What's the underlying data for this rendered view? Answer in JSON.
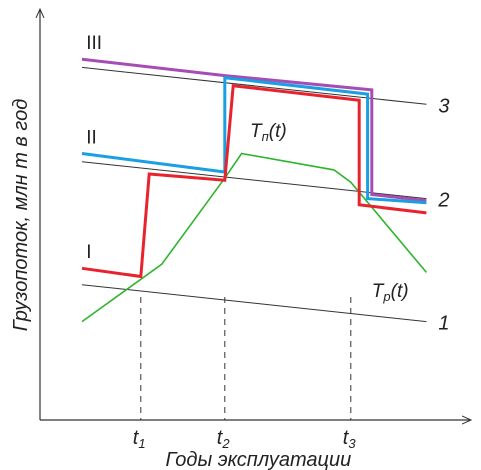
{
  "chart_data": {
    "type": "line",
    "xlabel": "Годы эксплуатации",
    "ylabel": "Грузопоток, млн т в год",
    "x_ticks": [
      {
        "base": "t",
        "sub": "1",
        "x": 2.4
      },
      {
        "base": "t",
        "sub": "2",
        "x": 4.4
      },
      {
        "base": "t",
        "sub": "3",
        "x": 7.4
      }
    ],
    "xlim": [
      0,
      10
    ],
    "ylim": [
      0,
      10
    ],
    "levels": [
      {
        "name": "1",
        "values": [
          [
            1,
            3.3
          ],
          [
            9.2,
            2.4
          ]
        ]
      },
      {
        "name": "2",
        "values": [
          [
            1,
            6.3
          ],
          [
            9.2,
            5.4
          ]
        ]
      },
      {
        "name": "3",
        "values": [
          [
            1,
            8.6
          ],
          [
            9.2,
            7.7
          ]
        ]
      }
    ],
    "series": [
      {
        "name": "T_п(t)",
        "color": "#2db52d",
        "values": [
          [
            1,
            2.4
          ],
          [
            2.9,
            3.8
          ],
          [
            4.4,
            5.9
          ],
          [
            4.8,
            6.5
          ],
          [
            7,
            6.1
          ],
          [
            7.4,
            5.8
          ],
          [
            9.2,
            3.6
          ]
        ]
      },
      {
        "name": "",
        "color": "#a64db5",
        "values": [
          [
            1,
            8.8
          ],
          [
            4.4,
            8.4
          ],
          [
            7.9,
            8.05
          ],
          [
            7.9,
            5.5
          ],
          [
            9.2,
            5.35
          ]
        ]
      },
      {
        "name": "",
        "color": "#1a9fe3",
        "values": [
          [
            1,
            6.5
          ],
          [
            4.4,
            6.05
          ],
          [
            4.4,
            8.35
          ],
          [
            7.8,
            7.95
          ],
          [
            7.8,
            5.4
          ],
          [
            9.2,
            5.3
          ]
        ]
      },
      {
        "name": "",
        "color": "#e8232d",
        "values": [
          [
            1,
            3.7
          ],
          [
            2.4,
            3.5
          ],
          [
            2.6,
            6.0
          ],
          [
            4.4,
            5.85
          ],
          [
            4.6,
            8.15
          ],
          [
            7.6,
            7.8
          ],
          [
            7.6,
            5.25
          ],
          [
            9.2,
            5.05
          ]
        ]
      }
    ],
    "annotations": [
      {
        "key": "III",
        "text": "III"
      },
      {
        "key": "II",
        "text": "II"
      },
      {
        "key": "I",
        "text": "I"
      },
      {
        "key": "Tn",
        "base": "T",
        "sub": "п",
        "tail": "(t)"
      },
      {
        "key": "Tp",
        "base": "T",
        "sub": "р",
        "tail": "(t)"
      }
    ],
    "grid": false
  }
}
